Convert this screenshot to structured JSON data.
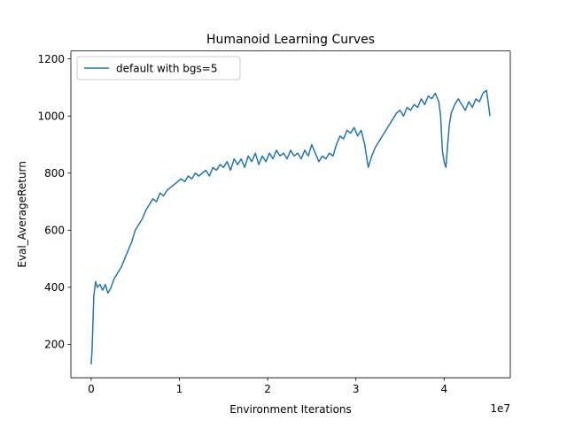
{
  "chart_data": {
    "type": "line",
    "title": "Humanoid Learning Curves",
    "xlabel": "Environment Iterations",
    "ylabel": "Eval_AverageReturn",
    "x_offset_label": "1e7",
    "xlim": [
      -2300000,
      47500000
    ],
    "ylim": [
      83,
      1228
    ],
    "x_ticks": [
      {
        "value": 0,
        "label": "0"
      },
      {
        "value": 10000000,
        "label": "1"
      },
      {
        "value": 20000000,
        "label": "2"
      },
      {
        "value": 30000000,
        "label": "3"
      },
      {
        "value": 40000000,
        "label": "4"
      }
    ],
    "y_ticks": [
      {
        "value": 200,
        "label": "200"
      },
      {
        "value": 400,
        "label": "400"
      },
      {
        "value": 600,
        "label": "600"
      },
      {
        "value": 800,
        "label": "800"
      },
      {
        "value": 1000,
        "label": "1000"
      },
      {
        "value": 1200,
        "label": "1200"
      }
    ],
    "grid": false,
    "legend_position": "top-left",
    "series": [
      {
        "name": "default with bgs=5",
        "color": "#1f77b4",
        "points": [
          [
            0,
            130
          ],
          [
            100000,
            180
          ],
          [
            300000,
            370
          ],
          [
            500000,
            420
          ],
          [
            700000,
            400
          ],
          [
            1000000,
            410
          ],
          [
            1300000,
            390
          ],
          [
            1600000,
            410
          ],
          [
            1900000,
            380
          ],
          [
            2200000,
            395
          ],
          [
            2600000,
            430
          ],
          [
            3000000,
            450
          ],
          [
            3400000,
            470
          ],
          [
            3800000,
            500
          ],
          [
            4200000,
            530
          ],
          [
            4600000,
            560
          ],
          [
            5000000,
            600
          ],
          [
            5400000,
            620
          ],
          [
            5800000,
            640
          ],
          [
            6200000,
            670
          ],
          [
            6600000,
            690
          ],
          [
            7000000,
            710
          ],
          [
            7400000,
            700
          ],
          [
            7800000,
            730
          ],
          [
            8200000,
            720
          ],
          [
            8600000,
            740
          ],
          [
            9000000,
            750
          ],
          [
            9400000,
            760
          ],
          [
            9800000,
            770
          ],
          [
            10200000,
            780
          ],
          [
            10600000,
            770
          ],
          [
            11000000,
            790
          ],
          [
            11400000,
            780
          ],
          [
            11800000,
            800
          ],
          [
            12200000,
            790
          ],
          [
            12600000,
            800
          ],
          [
            13000000,
            810
          ],
          [
            13400000,
            790
          ],
          [
            13800000,
            820
          ],
          [
            14200000,
            810
          ],
          [
            14600000,
            830
          ],
          [
            15000000,
            820
          ],
          [
            15400000,
            840
          ],
          [
            15800000,
            810
          ],
          [
            16200000,
            850
          ],
          [
            16600000,
            830
          ],
          [
            17000000,
            850
          ],
          [
            17400000,
            820
          ],
          [
            17800000,
            860
          ],
          [
            18200000,
            840
          ],
          [
            18600000,
            870
          ],
          [
            19000000,
            830
          ],
          [
            19400000,
            860
          ],
          [
            19800000,
            840
          ],
          [
            20200000,
            870
          ],
          [
            20600000,
            850
          ],
          [
            21000000,
            880
          ],
          [
            21400000,
            860
          ],
          [
            21800000,
            870
          ],
          [
            22200000,
            850
          ],
          [
            22600000,
            880
          ],
          [
            23000000,
            860
          ],
          [
            23400000,
            870
          ],
          [
            23800000,
            850
          ],
          [
            24200000,
            880
          ],
          [
            24600000,
            860
          ],
          [
            25000000,
            900
          ],
          [
            25400000,
            870
          ],
          [
            25800000,
            840
          ],
          [
            26200000,
            860
          ],
          [
            26600000,
            850
          ],
          [
            27000000,
            870
          ],
          [
            27400000,
            860
          ],
          [
            27800000,
            900
          ],
          [
            28200000,
            930
          ],
          [
            28600000,
            920
          ],
          [
            29000000,
            950
          ],
          [
            29400000,
            940
          ],
          [
            29800000,
            960
          ],
          [
            30200000,
            930
          ],
          [
            30600000,
            950
          ],
          [
            31000000,
            900
          ],
          [
            31400000,
            820
          ],
          [
            31800000,
            860
          ],
          [
            32200000,
            890
          ],
          [
            32600000,
            910
          ],
          [
            33000000,
            930
          ],
          [
            33400000,
            950
          ],
          [
            33800000,
            970
          ],
          [
            34200000,
            990
          ],
          [
            34600000,
            1010
          ],
          [
            35000000,
            1020
          ],
          [
            35400000,
            1000
          ],
          [
            35800000,
            1030
          ],
          [
            36200000,
            1020
          ],
          [
            36600000,
            1040
          ],
          [
            37000000,
            1030
          ],
          [
            37400000,
            1060
          ],
          [
            37800000,
            1040
          ],
          [
            38200000,
            1070
          ],
          [
            38600000,
            1060
          ],
          [
            39000000,
            1080
          ],
          [
            39400000,
            1050
          ],
          [
            39600000,
            1000
          ],
          [
            39800000,
            880
          ],
          [
            40000000,
            840
          ],
          [
            40200000,
            820
          ],
          [
            40400000,
            900
          ],
          [
            40600000,
            970
          ],
          [
            40800000,
            1010
          ],
          [
            41200000,
            1040
          ],
          [
            41600000,
            1060
          ],
          [
            42000000,
            1040
          ],
          [
            42400000,
            1020
          ],
          [
            42800000,
            1050
          ],
          [
            43200000,
            1030
          ],
          [
            43600000,
            1060
          ],
          [
            44000000,
            1050
          ],
          [
            44400000,
            1080
          ],
          [
            44800000,
            1090
          ],
          [
            45200000,
            1000
          ]
        ]
      }
    ]
  }
}
